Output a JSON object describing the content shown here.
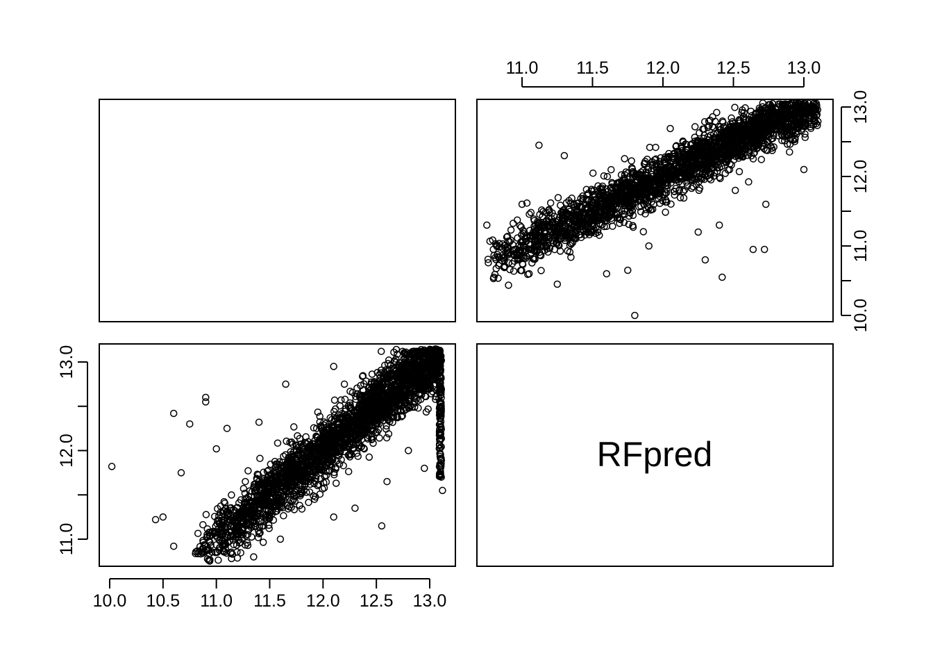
{
  "chart_data": {
    "type": "scatter",
    "layout": "pairs-matrix",
    "variables": [
      "",
      "RFpred"
    ],
    "diagonal_labels": [
      "",
      "RFpred"
    ],
    "panels": [
      {
        "id": "upper-right",
        "x_axis": {
          "ticks": [
            11.0,
            11.5,
            12.0,
            12.5,
            13.0
          ],
          "tick_labels": [
            "11.0",
            "11.5",
            "12.0",
            "12.5",
            "13.0"
          ],
          "range": [
            10.0,
            13.15
          ],
          "side": "top"
        },
        "y_axis": {
          "ticks": [
            10.0,
            11.0,
            12.0,
            13.0
          ],
          "tick_labels": [
            "10.0",
            "11.0",
            "12.0",
            "13.0"
          ],
          "minor_ticks": [
            10.5,
            11.5,
            12.5
          ],
          "range": [
            10.0,
            13.1
          ],
          "side": "right"
        },
        "trend": {
          "x_start": 10.75,
          "x_end": 13.1,
          "slope": 1.0,
          "spread": 0.17
        },
        "outliers": [
          [
            10.75,
            11.3
          ],
          [
            11.12,
            12.45
          ],
          [
            11.3,
            12.3
          ],
          [
            11.25,
            10.45
          ],
          [
            11.8,
            10.0
          ],
          [
            11.75,
            10.65
          ],
          [
            12.42,
            10.55
          ],
          [
            12.64,
            10.95
          ],
          [
            12.72,
            10.95
          ],
          [
            13.0,
            12.1
          ],
          [
            11.55,
            13.1
          ],
          [
            11.75,
            13.1
          ],
          [
            12.1,
            13.1
          ],
          [
            12.4,
            13.1
          ],
          [
            12.8,
            13.1
          ],
          [
            11.0,
            11.6
          ],
          [
            11.2,
            11.2
          ],
          [
            12.25,
            11.2
          ],
          [
            12.4,
            11.3
          ],
          [
            12.3,
            10.8
          ],
          [
            11.6,
            10.6
          ],
          [
            11.9,
            11.0
          ],
          [
            11.05,
            10.6
          ],
          [
            10.8,
            10.55
          ],
          [
            12.73,
            11.6
          ]
        ]
      },
      {
        "id": "lower-left",
        "x_axis": {
          "ticks": [
            10.0,
            10.5,
            11.0,
            11.5,
            12.0,
            12.5,
            13.0
          ],
          "tick_labels": [
            "10.0",
            "10.5",
            "11.0",
            "11.5",
            "12.0",
            "12.5",
            "13.0"
          ],
          "range": [
            9.9,
            13.15
          ],
          "side": "bottom"
        },
        "y_axis": {
          "ticks": [
            11.0,
            12.0,
            13.0
          ],
          "tick_labels": [
            "11.0",
            "12.0",
            "13.0"
          ],
          "minor_ticks": [
            11.5,
            12.5
          ],
          "range": [
            10.7,
            13.2
          ],
          "side": "left"
        },
        "trend": {
          "x_start": 10.8,
          "x_end": 13.1,
          "slope": 1.0,
          "spread": 0.17
        },
        "outliers": [
          [
            10.02,
            11.82
          ],
          [
            10.43,
            11.22
          ],
          [
            10.6,
            12.42
          ],
          [
            10.67,
            11.75
          ],
          [
            10.6,
            10.92
          ],
          [
            10.9,
            12.6
          ],
          [
            10.9,
            12.55
          ],
          [
            11.65,
            12.75
          ],
          [
            12.55,
            11.15
          ],
          [
            12.3,
            11.35
          ],
          [
            11.35,
            10.8
          ],
          [
            12.1,
            12.95
          ],
          [
            13.12,
            11.55
          ],
          [
            12.95,
            11.8
          ],
          [
            10.5,
            11.25
          ],
          [
            11.1,
            12.25
          ],
          [
            11.4,
            12.32
          ],
          [
            11.0,
            12.02
          ],
          [
            12.1,
            11.25
          ],
          [
            11.6,
            11.0
          ],
          [
            12.8,
            12.0
          ],
          [
            13.1,
            12.3
          ],
          [
            12.6,
            11.65
          ],
          [
            10.75,
            12.3
          ],
          [
            12.2,
            12.75
          ]
        ]
      }
    ]
  }
}
